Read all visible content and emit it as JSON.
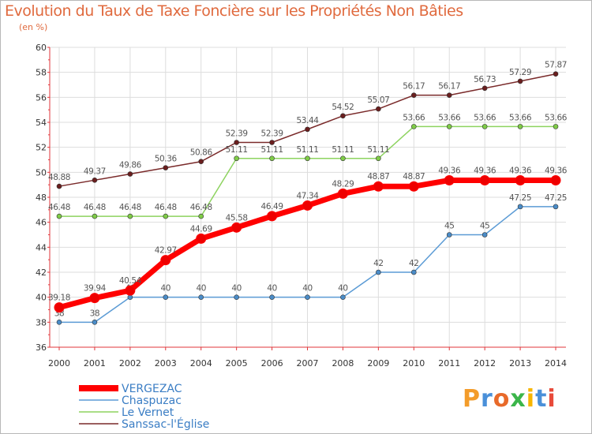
{
  "title": "Evolution du Taux de Taxe Foncière sur les Propriétés Non Bâties",
  "subtitle": "(en %)",
  "logo": "Proxiti",
  "colors": {
    "title": "#e06a3e",
    "axis": "#e0363a",
    "grid": "#dddddd",
    "label": "#555555"
  },
  "chart_data": {
    "type": "line",
    "x": [
      "2000",
      "2001",
      "2002",
      "2003",
      "2004",
      "2005",
      "2006",
      "2007",
      "2008",
      "2009",
      "2010",
      "2011",
      "2012",
      "2013",
      "2014"
    ],
    "ylim": [
      36,
      60
    ],
    "yticks": [
      36,
      38,
      40,
      42,
      44,
      46,
      48,
      50,
      52,
      54,
      56,
      58,
      60
    ],
    "grid": true,
    "legend_position": "bottom-left",
    "series": [
      {
        "name": "Sanssac-l'Église",
        "color": "#7a2a2a",
        "fill": "#6a1e1e",
        "width": 1.5,
        "values": [
          48.88,
          49.37,
          49.86,
          50.36,
          50.86,
          52.39,
          52.39,
          53.44,
          54.52,
          55.07,
          56.17,
          56.17,
          56.73,
          57.29,
          57.87
        ],
        "labels": [
          "48.88",
          "49.37",
          "49.86",
          "50.36",
          "50.86",
          "52.39",
          "52.39",
          "53.44",
          "54.52",
          "55.07",
          "56.17",
          "56.17",
          "56.73",
          "57.29",
          "57.87"
        ]
      },
      {
        "name": "Le Vernet",
        "color": "#8dd35f",
        "fill": "#7fcc47",
        "width": 1.5,
        "values": [
          46.48,
          46.48,
          46.48,
          46.48,
          46.48,
          51.11,
          51.11,
          51.11,
          51.11,
          51.11,
          53.66,
          53.66,
          53.66,
          53.66,
          53.66
        ],
        "labels": [
          "46.48",
          "46.48",
          "46.48",
          "46.48",
          "46.48",
          "51.11",
          "51.11",
          "51.11",
          "51.11",
          "51.11",
          "53.66",
          "53.66",
          "53.66",
          "53.66",
          "53.66"
        ]
      },
      {
        "name": "Chaspuzac",
        "color": "#5b9bd5",
        "fill": "#4a8cc8",
        "width": 1.5,
        "values": [
          38,
          38,
          40,
          40,
          40,
          40,
          40,
          40,
          40,
          42,
          42,
          45,
          45,
          47.25,
          47.25
        ],
        "labels": [
          "38",
          "38",
          "40",
          "40",
          "40",
          "40",
          "40",
          "40",
          "40",
          "42",
          "42",
          "45",
          "45",
          "47.25",
          "47.25"
        ]
      },
      {
        "name": "VERGEZAC",
        "color": "#ff0000",
        "fill": "#ee0000",
        "width": 7,
        "values": [
          39.18,
          39.94,
          40.54,
          42.97,
          44.69,
          45.58,
          46.49,
          47.34,
          48.29,
          48.87,
          48.87,
          49.36,
          49.36,
          49.36,
          49.36
        ],
        "labels": [
          "39.18",
          "39.94",
          "40.54",
          "42.97",
          "44.69",
          "45.58",
          "46.49",
          "47.34",
          "48.29",
          "48.87",
          "48.87",
          "49.36",
          "49.36",
          "49.36",
          "49.36"
        ]
      }
    ],
    "legend": [
      "VERGEZAC",
      "Chaspuzac",
      "Le Vernet",
      "Sanssac-l'Église"
    ]
  }
}
